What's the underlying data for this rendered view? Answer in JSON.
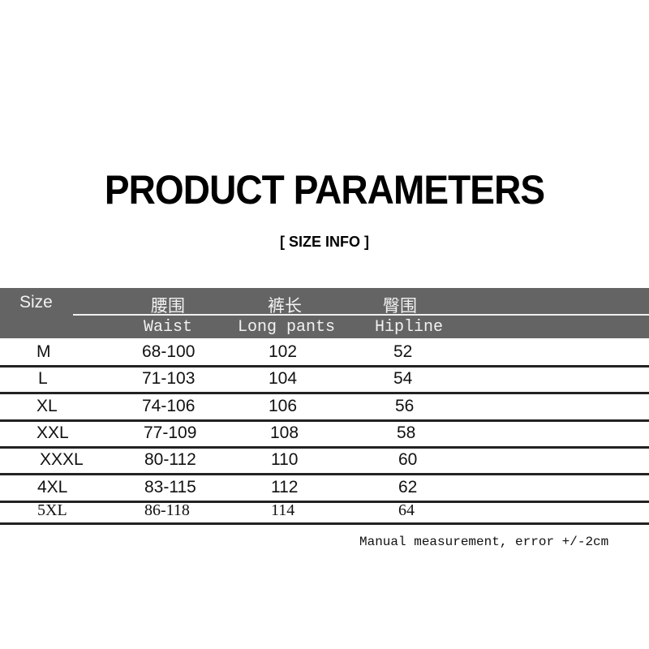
{
  "title": "PRODUCT PARAMETERS",
  "subtitle": "[ SIZE INFO ]",
  "table": {
    "header": {
      "size": "Size",
      "waist_cn": "腰围",
      "length_cn": "裤长",
      "hip_cn": "臀围",
      "waist_en": "Waist",
      "length_en": "Long pants",
      "hip_en": "Hipline"
    },
    "rows": [
      {
        "size": "M",
        "waist": "68-100",
        "length": "102",
        "hip": "52"
      },
      {
        "size": "L",
        "waist": "71-103",
        "length": "104",
        "hip": "54"
      },
      {
        "size": "XL",
        "waist": "74-106",
        "length": "106",
        "hip": "56"
      },
      {
        "size": "XXL",
        "waist": "77-109",
        "length": "108",
        "hip": "58"
      },
      {
        "size": "XXXL",
        "waist": "80-112",
        "length": "110",
        "hip": "60"
      },
      {
        "size": "4XL",
        "waist": "83-115",
        "length": "112",
        "hip": "62"
      },
      {
        "size": "5XL",
        "waist": "86-118",
        "length": "114",
        "hip": "64"
      }
    ]
  },
  "note": "Manual measurement, error +/-2cm",
  "colors": {
    "header_bg": "#646464",
    "header_text": "#f2f2f2"
  }
}
